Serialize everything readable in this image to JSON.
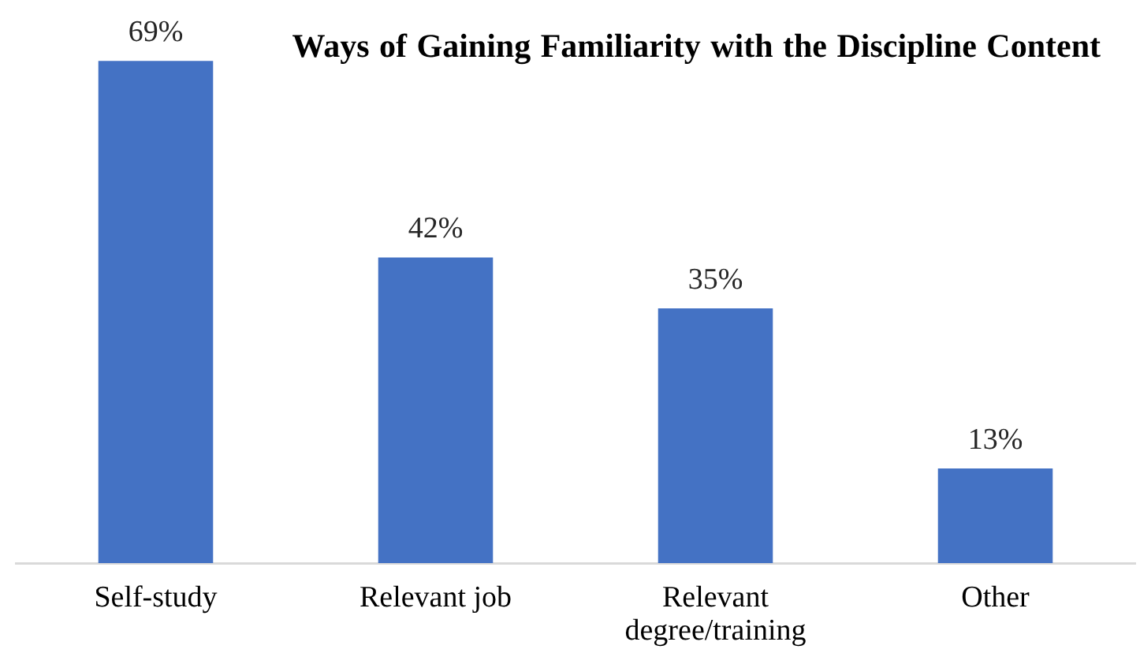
{
  "chart_data": {
    "type": "bar",
    "title": "Ways of Gaining Familiarity with the Discipline Content",
    "categories": [
      "Self-study",
      "Relevant job",
      "Relevant degree/training",
      "Other"
    ],
    "values": [
      69,
      42,
      35,
      13
    ],
    "color": "#4472c4",
    "value_labels": [
      "69%",
      "42%",
      "35%",
      "13%"
    ]
  }
}
